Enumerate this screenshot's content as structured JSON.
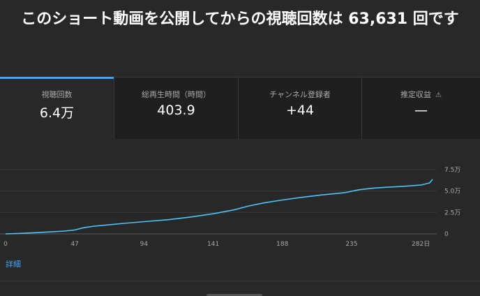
{
  "headline": "このショート動画を公開してからの視聴回数は 63,631 回です",
  "metrics": [
    {
      "label": "視聴回数",
      "value": "6.4万"
    },
    {
      "label": "総再生時間（時間）",
      "value": "403.9"
    },
    {
      "label": "チャンネル登録者",
      "value": "+44"
    },
    {
      "label": "推定収益",
      "value": "—",
      "warning_icon": "⚠"
    }
  ],
  "details_link": "詳細",
  "colors": {
    "accent": "#3ea6ff",
    "line": "#4fc3f7"
  },
  "chart_data": {
    "type": "line",
    "x_ticks": [
      "0",
      "47",
      "94",
      "141",
      "188",
      "235",
      "282日"
    ],
    "y_ticks": [
      "0",
      "2.5万",
      "5.0万",
      "7.5万"
    ],
    "xlim": [
      0,
      290
    ],
    "ylim": [
      0,
      75000
    ],
    "grid": true,
    "series": [
      {
        "x": [
          0,
          10,
          20,
          30,
          40,
          47,
          53,
          60,
          70,
          80,
          94,
          110,
          125,
          141,
          155,
          165,
          175,
          188,
          200,
          215,
          230,
          240,
          250,
          260,
          270,
          282,
          288,
          290
        ],
        "y": [
          0,
          600,
          1400,
          2300,
          3300,
          4600,
          7200,
          9000,
          10500,
          12200,
          14300,
          16500,
          19500,
          23500,
          28000,
          32500,
          36000,
          39500,
          42500,
          45500,
          48000,
          51500,
          53500,
          54500,
          55500,
          57000,
          59500,
          63631
        ]
      }
    ]
  }
}
